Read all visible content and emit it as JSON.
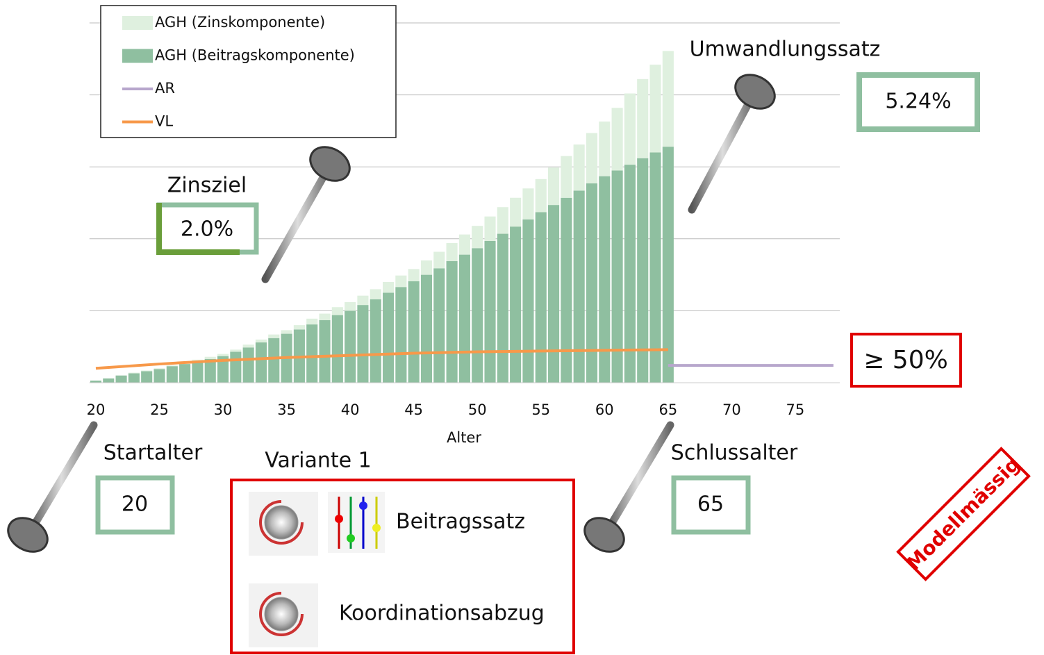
{
  "chart_data": {
    "type": "bar",
    "x_label": "Alter",
    "x": [
      20,
      21,
      22,
      23,
      24,
      25,
      26,
      27,
      28,
      29,
      30,
      31,
      32,
      33,
      34,
      35,
      36,
      37,
      38,
      39,
      40,
      41,
      42,
      43,
      44,
      45,
      46,
      47,
      48,
      49,
      50,
      51,
      52,
      53,
      54,
      55,
      56,
      57,
      58,
      59,
      60,
      61,
      62,
      63,
      64,
      65
    ],
    "series": [
      {
        "name": "AGH (Zinskomponente)",
        "color": "#dff0df",
        "kind": "bar",
        "values": [
          0,
          0,
          0,
          0.01,
          0.01,
          0.01,
          0.01,
          0.02,
          0.02,
          0.03,
          0.03,
          0.03,
          0.04,
          0.04,
          0.05,
          0.05,
          0.06,
          0.08,
          0.09,
          0.11,
          0.12,
          0.13,
          0.14,
          0.15,
          0.16,
          0.17,
          0.2,
          0.23,
          0.25,
          0.28,
          0.31,
          0.34,
          0.37,
          0.4,
          0.43,
          0.46,
          0.52,
          0.58,
          0.64,
          0.7,
          0.76,
          0.87,
          0.99,
          1.1,
          1.22,
          1.33
        ]
      },
      {
        "name": "AGH (Beitragskomponente)",
        "color": "#8fbfa0",
        "kind": "bar",
        "values": [
          0.03,
          0.06,
          0.1,
          0.13,
          0.16,
          0.19,
          0.23,
          0.26,
          0.3,
          0.33,
          0.37,
          0.43,
          0.49,
          0.56,
          0.62,
          0.68,
          0.74,
          0.81,
          0.87,
          0.94,
          1,
          1.08,
          1.16,
          1.25,
          1.33,
          1.41,
          1.5,
          1.59,
          1.69,
          1.78,
          1.87,
          1.97,
          2.07,
          2.17,
          2.27,
          2.37,
          2.47,
          2.57,
          2.67,
          2.77,
          2.87,
          2.95,
          3.03,
          3.12,
          3.2,
          3.28
        ]
      },
      {
        "name": "AR",
        "color": "#b7a6cc",
        "kind": "line",
        "x": [
          65,
          78
        ],
        "values": [
          0.24,
          0.24
        ]
      },
      {
        "name": "VL",
        "color": "#f7994a",
        "kind": "line",
        "x": [
          20,
          25,
          30,
          35,
          40,
          45,
          50,
          55,
          60,
          65
        ],
        "values": [
          0.2,
          0.26,
          0.31,
          0.35,
          0.38,
          0.41,
          0.43,
          0.44,
          0.45,
          0.46
        ]
      }
    ],
    "xlim": [
      19.5,
      78.5
    ],
    "xticks": [
      20,
      25,
      30,
      35,
      40,
      45,
      50,
      55,
      60,
      65,
      70,
      75
    ],
    "ylim": [
      0,
      5
    ],
    "yticks": [
      0,
      1,
      2,
      3,
      4,
      5
    ],
    "grid": true
  },
  "annotations": {
    "conversion": {
      "label": "Umwandlungssatz",
      "value": "5.24%"
    },
    "interest_target": {
      "label": "Zinsziel",
      "value": "2.0%"
    },
    "start_age": {
      "label": "Startalter",
      "value": "20"
    },
    "end_age": {
      "label": "Schlussalter",
      "value": "65"
    },
    "threshold": "≥ 50%",
    "variant": {
      "title": "Variante 1",
      "items": [
        "Beitragssatz",
        "Koordinationsabzug"
      ]
    },
    "stamp": "Modellmässig"
  }
}
